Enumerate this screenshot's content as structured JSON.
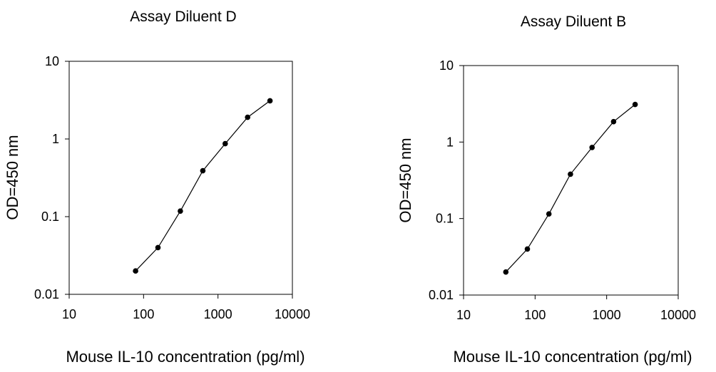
{
  "chart_data": [
    {
      "type": "line",
      "title": "Assay Diluent D",
      "xlabel": "Mouse IL-10 concentration (pg/ml)",
      "ylabel": "OD=450 nm",
      "x_scale": "log",
      "y_scale": "log",
      "xlim": [
        10,
        10000
      ],
      "ylim": [
        0.01,
        10
      ],
      "xticks": [
        "10",
        "100",
        "1000",
        "10000"
      ],
      "yticks": [
        "0.01",
        "0.1",
        "1",
        "10"
      ],
      "grid": false,
      "series": [
        {
          "x": [
            78,
            156,
            312,
            625,
            1250,
            2500,
            5000
          ],
          "y": [
            0.02,
            0.04,
            0.118,
            0.39,
            0.87,
            1.9,
            3.1
          ]
        }
      ]
    },
    {
      "type": "line",
      "title": "Assay Diluent B",
      "xlabel": "Mouse IL-10 concentration (pg/ml)",
      "ylabel": "OD=450 nm",
      "x_scale": "log",
      "y_scale": "log",
      "xlim": [
        10,
        10000
      ],
      "ylim": [
        0.01,
        10
      ],
      "xticks": [
        "10",
        "100",
        "1000",
        "10000"
      ],
      "yticks": [
        "0.01",
        "0.1",
        "1",
        "10"
      ],
      "grid": false,
      "series": [
        {
          "x": [
            39,
            78,
            156,
            312,
            625,
            1250,
            2500
          ],
          "y": [
            0.02,
            0.04,
            0.115,
            0.38,
            0.85,
            1.85,
            3.1
          ]
        }
      ]
    }
  ]
}
